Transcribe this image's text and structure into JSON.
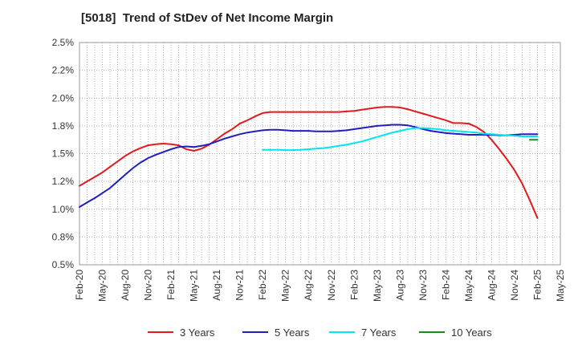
{
  "chart_data": {
    "type": "line",
    "title": "[5018]  Trend of StDev of Net Income Margin",
    "xlabel": "",
    "ylabel": "",
    "ylim": [
      0.5,
      2.5
    ],
    "yticks": [
      "0.5%",
      "0.8%",
      "1.0%",
      "1.2%",
      "1.5%",
      "1.8%",
      "2.0%",
      "2.2%",
      "2.5%"
    ],
    "yticks_values": [
      0.5,
      0.75,
      1.0,
      1.25,
      1.5,
      1.75,
      2.0,
      2.25,
      2.5
    ],
    "x_categories": [
      "Feb-20",
      "May-20",
      "Aug-20",
      "Nov-20",
      "Feb-21",
      "May-21",
      "Aug-21",
      "Nov-21",
      "Feb-22",
      "May-22",
      "Aug-22",
      "Nov-22",
      "Feb-23",
      "May-23",
      "Aug-23",
      "Nov-23",
      "Feb-24",
      "May-24",
      "Aug-24",
      "Nov-24",
      "Feb-25",
      "May-25"
    ],
    "grid": true,
    "legend_position": "bottom",
    "series": [
      {
        "name": "3 Years",
        "color": "#e31a1c",
        "x": [
          "Feb-20",
          "Mar-20",
          "Apr-20",
          "May-20",
          "Jun-20",
          "Jul-20",
          "Aug-20",
          "Sep-20",
          "Oct-20",
          "Nov-20",
          "Dec-20",
          "Jan-21",
          "Feb-21",
          "Mar-21",
          "Apr-21",
          "May-21",
          "Jun-21",
          "Jul-21",
          "Aug-21",
          "Sep-21",
          "Oct-21",
          "Nov-21",
          "Dec-21",
          "Jan-22",
          "Feb-22",
          "Mar-22",
          "Apr-22",
          "May-22",
          "Jun-22",
          "Jul-22",
          "Aug-22",
          "Sep-22",
          "Oct-22",
          "Nov-22",
          "Dec-22",
          "Jan-23",
          "Feb-23",
          "Mar-23",
          "Apr-23",
          "May-23",
          "Jun-23",
          "Jul-23",
          "Aug-23",
          "Sep-23",
          "Oct-23",
          "Nov-23",
          "Dec-23",
          "Jan-24",
          "Feb-24",
          "Mar-24",
          "Apr-24",
          "May-24",
          "Jun-24",
          "Jul-24",
          "Aug-24",
          "Sep-24",
          "Oct-24",
          "Nov-24",
          "Dec-24",
          "Jan-25",
          "Feb-25"
        ],
        "values": [
          1.21,
          1.25,
          1.29,
          1.33,
          1.38,
          1.43,
          1.48,
          1.52,
          1.55,
          1.575,
          1.585,
          1.59,
          1.585,
          1.575,
          1.54,
          1.525,
          1.545,
          1.58,
          1.63,
          1.68,
          1.72,
          1.77,
          1.8,
          1.835,
          1.865,
          1.875,
          1.875,
          1.875,
          1.875,
          1.875,
          1.875,
          1.875,
          1.875,
          1.875,
          1.875,
          1.88,
          1.885,
          1.895,
          1.905,
          1.915,
          1.92,
          1.92,
          1.915,
          1.9,
          1.88,
          1.86,
          1.84,
          1.82,
          1.8,
          1.775,
          1.775,
          1.77,
          1.74,
          1.695,
          1.625,
          1.54,
          1.45,
          1.35,
          1.23,
          1.08,
          0.92
        ]
      },
      {
        "name": "5 Years",
        "color": "#1f1fbf",
        "x": [
          "Feb-20",
          "Mar-20",
          "Apr-20",
          "May-20",
          "Jun-20",
          "Jul-20",
          "Aug-20",
          "Sep-20",
          "Oct-20",
          "Nov-20",
          "Dec-20",
          "Jan-21",
          "Feb-21",
          "Mar-21",
          "Apr-21",
          "May-21",
          "Jun-21",
          "Jul-21",
          "Aug-21",
          "Sep-21",
          "Oct-21",
          "Nov-21",
          "Dec-21",
          "Jan-22",
          "Feb-22",
          "Mar-22",
          "Apr-22",
          "May-22",
          "Jun-22",
          "Jul-22",
          "Aug-22",
          "Sep-22",
          "Oct-22",
          "Nov-22",
          "Dec-22",
          "Jan-23",
          "Feb-23",
          "Mar-23",
          "Apr-23",
          "May-23",
          "Jun-23",
          "Jul-23",
          "Aug-23",
          "Sep-23",
          "Oct-23",
          "Nov-23",
          "Dec-23",
          "Jan-24",
          "Feb-24",
          "Mar-24",
          "Apr-24",
          "May-24",
          "Jun-24",
          "Jul-24",
          "Aug-24",
          "Sep-24",
          "Oct-24",
          "Nov-24",
          "Dec-24",
          "Jan-25",
          "Feb-25"
        ],
        "values": [
          1.02,
          1.06,
          1.1,
          1.145,
          1.19,
          1.25,
          1.31,
          1.37,
          1.42,
          1.46,
          1.49,
          1.515,
          1.54,
          1.56,
          1.565,
          1.56,
          1.57,
          1.585,
          1.61,
          1.635,
          1.655,
          1.675,
          1.69,
          1.7,
          1.71,
          1.715,
          1.715,
          1.71,
          1.705,
          1.705,
          1.705,
          1.7,
          1.7,
          1.7,
          1.705,
          1.71,
          1.72,
          1.73,
          1.74,
          1.75,
          1.755,
          1.76,
          1.76,
          1.755,
          1.74,
          1.72,
          1.705,
          1.695,
          1.685,
          1.68,
          1.675,
          1.67,
          1.67,
          1.67,
          1.67,
          1.665,
          1.665,
          1.67,
          1.675,
          1.675,
          1.675
        ]
      },
      {
        "name": "7 Years",
        "color": "#00e5ee",
        "x": [
          "Feb-22",
          "Mar-22",
          "Apr-22",
          "May-22",
          "Jun-22",
          "Jul-22",
          "Aug-22",
          "Sep-22",
          "Oct-22",
          "Nov-22",
          "Dec-22",
          "Jan-23",
          "Feb-23",
          "Mar-23",
          "Apr-23",
          "May-23",
          "Jun-23",
          "Jul-23",
          "Aug-23",
          "Sep-23",
          "Oct-23",
          "Nov-23",
          "Dec-23",
          "Jan-24",
          "Feb-24",
          "Mar-24",
          "Apr-24",
          "May-24",
          "Jun-24",
          "Jul-24",
          "Aug-24",
          "Sep-24",
          "Oct-24",
          "Nov-24",
          "Dec-24",
          "Jan-25",
          "Feb-25"
        ],
        "values": [
          1.535,
          1.535,
          1.535,
          1.532,
          1.532,
          1.535,
          1.54,
          1.545,
          1.55,
          1.56,
          1.57,
          1.58,
          1.595,
          1.61,
          1.63,
          1.65,
          1.67,
          1.69,
          1.705,
          1.72,
          1.73,
          1.73,
          1.725,
          1.72,
          1.71,
          1.705,
          1.7,
          1.695,
          1.69,
          1.68,
          1.675,
          1.67,
          1.665,
          1.66,
          1.655,
          1.655,
          1.655
        ]
      },
      {
        "name": "10 Years",
        "color": "#1a8a1a",
        "x": [
          "Jan-25",
          "Feb-25"
        ],
        "values": [
          1.625,
          1.625
        ]
      }
    ]
  }
}
